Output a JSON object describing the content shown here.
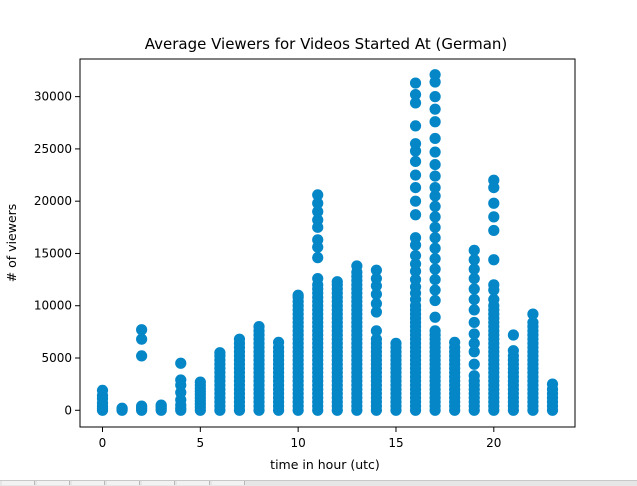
{
  "window": {
    "taskbar_slots": 7
  },
  "colors": {
    "marker": "#0486c7",
    "axis": "#000000",
    "background": "#ffffff"
  },
  "chart_data": {
    "type": "scatter",
    "title": "Average Viewers for Videos Started At (German)",
    "xlabel": "time in hour (utc)",
    "ylabel": "# of viewers",
    "xlim": [
      -1.15,
      24.15
    ],
    "ylim": [
      -1600,
      33600
    ],
    "xticks": [
      0,
      5,
      10,
      15,
      20
    ],
    "yticks": [
      0,
      5000,
      10000,
      15000,
      20000,
      25000,
      30000
    ],
    "ytick_labels": [
      "0",
      "5000",
      "10000",
      "15000",
      "20000",
      "25000",
      "30000"
    ],
    "grid": false,
    "legend": "none",
    "series": [
      {
        "values_by_hour": [
          {
            "x": 0,
            "y": [
              0,
              200,
              400,
              700,
              1100,
              1400,
              1900
            ]
          },
          {
            "x": 1,
            "y": [
              0,
              100,
              200
            ]
          },
          {
            "x": 2,
            "y": [
              0,
              200,
              400,
              5200,
              6800,
              7700
            ]
          },
          {
            "x": 3,
            "y": [
              0,
              200,
              400,
              500
            ]
          },
          {
            "x": 4,
            "y": [
              0,
              200,
              500,
              1000,
              1700,
              2400,
              2900,
              4500
            ]
          },
          {
            "x": 5,
            "y": [
              0,
              300,
              600,
              900,
              1200,
              1500,
              1800,
              2100,
              2400,
              2700
            ]
          },
          {
            "x": 6,
            "y": [
              0,
              400,
              800,
              1200,
              1600,
              2000,
              2400,
              2800,
              3200,
              3600,
              4000,
              4400,
              4800,
              5200,
              5500
            ]
          },
          {
            "x": 7,
            "y": [
              0,
              400,
              800,
              1200,
              1600,
              2000,
              2400,
              2800,
              3200,
              3600,
              4000,
              4400,
              4800,
              5200,
              5600,
              6000,
              6400,
              6800
            ]
          },
          {
            "x": 8,
            "y": [
              0,
              400,
              800,
              1200,
              1600,
              2000,
              2400,
              2800,
              3200,
              3600,
              4000,
              4400,
              4800,
              5200,
              5600,
              6000,
              6400,
              6800,
              7200,
              7600,
              8000
            ]
          },
          {
            "x": 9,
            "y": [
              0,
              400,
              800,
              1200,
              1600,
              2000,
              2400,
              2800,
              3200,
              3600,
              4000,
              4400,
              4800,
              5200,
              5600,
              6000,
              6500
            ]
          },
          {
            "x": 10,
            "y": [
              0,
              400,
              800,
              1200,
              1600,
              2000,
              2400,
              2800,
              3200,
              3600,
              4000,
              4400,
              4800,
              5200,
              5600,
              6000,
              6400,
              6800,
              7200,
              7600,
              8000,
              8400,
              8800,
              9200,
              9600,
              10000,
              10400,
              10800,
              11000
            ]
          },
          {
            "x": 11,
            "y": [
              0,
              400,
              800,
              1200,
              1600,
              2000,
              2400,
              2800,
              3200,
              3600,
              4000,
              4400,
              4800,
              5200,
              5600,
              6000,
              6400,
              6800,
              7200,
              7600,
              8000,
              8400,
              8800,
              9200,
              9600,
              10000,
              10400,
              10800,
              11200,
              11600,
              12000,
              12600,
              14600,
              15600,
              16300,
              17500,
              18200,
              19000,
              19800,
              20600
            ]
          },
          {
            "x": 12,
            "y": [
              0,
              400,
              800,
              1200,
              1600,
              2000,
              2400,
              2800,
              3200,
              3600,
              4000,
              4400,
              4800,
              5200,
              5600,
              6000,
              6400,
              6800,
              7200,
              7600,
              8000,
              8400,
              8800,
              9200,
              9600,
              10000,
              10400,
              10800,
              11200,
              11600,
              12000,
              12300
            ]
          },
          {
            "x": 13,
            "y": [
              0,
              400,
              800,
              1200,
              1600,
              2000,
              2400,
              2800,
              3200,
              3600,
              4000,
              4400,
              4800,
              5200,
              5600,
              6000,
              6400,
              6800,
              7200,
              7600,
              8000,
              8400,
              8800,
              9200,
              9600,
              10000,
              10400,
              10800,
              11200,
              11600,
              12000,
              12400,
              12800,
              13200,
              13800
            ]
          },
          {
            "x": 14,
            "y": [
              0,
              400,
              800,
              1200,
              1600,
              2000,
              2400,
              2800,
              3200,
              3600,
              4000,
              4400,
              4800,
              5200,
              5600,
              6000,
              6400,
              6800,
              7600,
              9400,
              10200,
              11100,
              11900,
              12600,
              13400
            ]
          },
          {
            "x": 15,
            "y": [
              0,
              400,
              800,
              1200,
              1600,
              2000,
              2400,
              2800,
              3200,
              3600,
              4000,
              4400,
              4800,
              5200,
              5600,
              6000,
              6400
            ]
          },
          {
            "x": 16,
            "y": [
              0,
              400,
              800,
              1200,
              1600,
              2000,
              2400,
              2800,
              3200,
              3600,
              4000,
              4400,
              4800,
              5200,
              5600,
              6000,
              6400,
              6800,
              7200,
              7600,
              8000,
              8400,
              8800,
              9200,
              9600,
              10000,
              10600,
              11200,
              11800,
              12500,
              13300,
              14000,
              14800,
              15800,
              16500,
              18700,
              20000,
              21300,
              22500,
              23800,
              24800,
              25500,
              27200,
              29400,
              30200,
              31300
            ]
          },
          {
            "x": 17,
            "y": [
              0,
              400,
              800,
              1200,
              1600,
              2000,
              2400,
              2800,
              3200,
              3600,
              4000,
              4400,
              4800,
              5200,
              5600,
              6000,
              6400,
              6800,
              7200,
              7600,
              8900,
              10500,
              11500,
              12500,
              13500,
              14500,
              15500,
              16500,
              17500,
              18500,
              19500,
              20500,
              21300,
              22400,
              23500,
              24700,
              26000,
              27600,
              28800,
              30000,
              31400,
              32100
            ]
          },
          {
            "x": 18,
            "y": [
              0,
              400,
              800,
              1200,
              1600,
              2000,
              2400,
              2800,
              3200,
              3600,
              4000,
              4400,
              4800,
              5200,
              5600,
              6000,
              6500
            ]
          },
          {
            "x": 19,
            "y": [
              0,
              400,
              800,
              1200,
              1600,
              2000,
              2400,
              2800,
              3300,
              4400,
              5600,
              6400,
              7300,
              8400,
              9600,
              10600,
              11600,
              12600,
              13500,
              14400,
              15300
            ]
          },
          {
            "x": 20,
            "y": [
              0,
              400,
              800,
              1200,
              1600,
              2000,
              2400,
              2800,
              3200,
              3600,
              4000,
              4400,
              4800,
              5200,
              5600,
              6000,
              6400,
              6800,
              7200,
              7600,
              8000,
              8400,
              8800,
              9200,
              9600,
              10000,
              10600,
              11500,
              12000,
              14400,
              17200,
              18500,
              19800,
              21300,
              22000
            ]
          },
          {
            "x": 21,
            "y": [
              0,
              400,
              800,
              1200,
              1600,
              2000,
              2400,
              2800,
              3200,
              3600,
              4000,
              4400,
              4800,
              5200,
              5700,
              7200
            ]
          },
          {
            "x": 22,
            "y": [
              0,
              400,
              800,
              1200,
              1600,
              2000,
              2400,
              2800,
              3200,
              3600,
              4000,
              4400,
              4800,
              5200,
              5600,
              6000,
              6400,
              6800,
              7200,
              7600,
              8000,
              8400,
              9200
            ]
          },
          {
            "x": 23,
            "y": [
              0,
              400,
              800,
              1200,
              1600,
              2000,
              2500
            ]
          }
        ]
      }
    ]
  }
}
